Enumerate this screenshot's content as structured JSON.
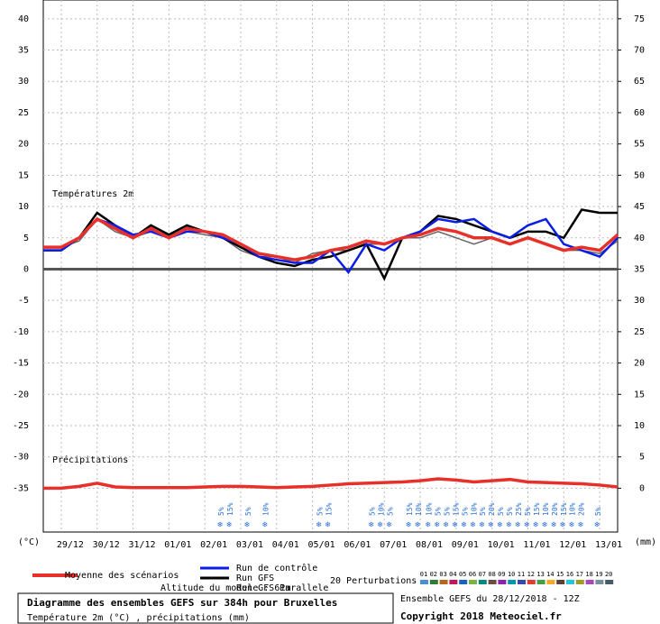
{
  "chart_data": {
    "type": "line",
    "temp_label": "Températures 2m",
    "precip_label": "Précipitations",
    "y_unit": "(°C)",
    "y2_unit": "(mm)",
    "x": [
      0,
      12,
      24,
      36,
      48,
      60,
      72,
      84,
      96,
      108,
      120,
      132,
      144,
      156,
      168,
      180,
      192,
      204,
      216,
      228,
      240,
      252,
      264,
      276,
      288,
      300,
      312,
      324,
      336,
      348,
      360,
      372,
      384
    ],
    "xlim": [
      0,
      384
    ],
    "xticks": [
      {
        "value": 12,
        "label": "29/12"
      },
      {
        "value": 36,
        "label": "30/12"
      },
      {
        "value": 60,
        "label": "31/12"
      },
      {
        "value": 84,
        "label": "01/01"
      },
      {
        "value": 108,
        "label": "02/01"
      },
      {
        "value": 132,
        "label": "03/01"
      },
      {
        "value": 156,
        "label": "04/01"
      },
      {
        "value": 180,
        "label": "05/01"
      },
      {
        "value": 204,
        "label": "06/01"
      },
      {
        "value": 228,
        "label": "07/01"
      },
      {
        "value": 252,
        "label": "08/01"
      },
      {
        "value": 276,
        "label": "09/01"
      },
      {
        "value": 300,
        "label": "10/01"
      },
      {
        "value": 324,
        "label": "11/01"
      },
      {
        "value": 348,
        "label": "12/01"
      },
      {
        "value": 372,
        "label": "13/01"
      }
    ],
    "ylim": [
      -42,
      43
    ],
    "yticks": [
      40,
      35,
      30,
      25,
      20,
      15,
      10,
      5,
      0,
      -5,
      -10,
      -15,
      -20,
      -25,
      -30,
      -35
    ],
    "y2lim": [
      -7,
      78
    ],
    "y2ticks": [
      75,
      70,
      65,
      60,
      55,
      50,
      45,
      40,
      35,
      30,
      25,
      20,
      15,
      10,
      5,
      0
    ],
    "grid": true,
    "series": [
      {
        "name": "Run GFS Parallele",
        "color": "#666666",
        "width": 1.5,
        "values": [
          3.5,
          3.5,
          4.5,
          8,
          6,
          5,
          6,
          5.5,
          6,
          5.5,
          5,
          3,
          2,
          2,
          1,
          2.5,
          3,
          3,
          4,
          4,
          5,
          5,
          6,
          5,
          4,
          5,
          4,
          5,
          4,
          3,
          3,
          2.5,
          4.5
        ]
      },
      {
        "name": "Run GFS",
        "color": "#000000",
        "width": 2.5,
        "values": [
          3,
          3,
          5,
          9,
          7,
          5,
          7,
          5.5,
          7,
          6,
          5,
          3.5,
          2,
          1,
          0.5,
          1.5,
          2,
          3,
          4,
          -1.5,
          5,
          6,
          8.5,
          8,
          7,
          6,
          5,
          6,
          6,
          5,
          9.5,
          9,
          9
        ]
      },
      {
        "name": "Run de contrôle",
        "color": "#0a1ee6",
        "width": 2.5,
        "values": [
          3,
          3,
          5,
          8,
          7,
          5.5,
          6,
          5,
          6,
          6,
          5,
          4,
          2,
          1.5,
          1,
          1,
          3,
          -0.5,
          4,
          3,
          5,
          6,
          8,
          7.5,
          8,
          6,
          5,
          7,
          8,
          4,
          3,
          2,
          5
        ]
      },
      {
        "name": "Moyenne des scénarios",
        "color": "#e8302a",
        "width": 3.5,
        "values": [
          3.5,
          3.5,
          5,
          8,
          6.5,
          5,
          6.5,
          5,
          6.5,
          6,
          5.5,
          4,
          2.5,
          2,
          1.5,
          2,
          3,
          3.5,
          4.5,
          4,
          5,
          5.5,
          6.5,
          6,
          5,
          5,
          4,
          5,
          4,
          3,
          3.5,
          3,
          5.5
        ]
      },
      {
        "color": "#e8302a",
        "width": 3.5,
        "axis": "y2",
        "values": [
          0,
          0,
          0.3,
          0.8,
          0.2,
          0.1,
          0.1,
          0.1,
          0.1,
          0.2,
          0.3,
          0.3,
          0.2,
          0.1,
          0.2,
          0.3,
          0.5,
          0.7,
          0.8,
          0.9,
          1.0,
          1.2,
          1.5,
          1.3,
          1.0,
          1.2,
          1.4,
          1.0,
          0.9,
          0.8,
          0.7,
          0.5,
          0.2
        ]
      }
    ],
    "snow": [
      {
        "x": 119,
        "label": "5%"
      },
      {
        "x": 125,
        "label": "15%"
      },
      {
        "x": 137,
        "label": "5%"
      },
      {
        "x": 149,
        "label": "10%"
      },
      {
        "x": 185,
        "label": "5%"
      },
      {
        "x": 191,
        "label": "15%"
      },
      {
        "x": 220,
        "label": "5%"
      },
      {
        "x": 226,
        "label": "10%"
      },
      {
        "x": 232,
        "label": "5%"
      },
      {
        "x": 245,
        "label": "15%"
      },
      {
        "x": 251,
        "label": "10%"
      },
      {
        "x": 258,
        "label": "10%"
      },
      {
        "x": 264,
        "label": "5%"
      },
      {
        "x": 270,
        "label": "5%"
      },
      {
        "x": 276,
        "label": "15%"
      },
      {
        "x": 282,
        "label": "5%"
      },
      {
        "x": 288,
        "label": "10%"
      },
      {
        "x": 294,
        "label": "5%"
      },
      {
        "x": 300,
        "label": "20%"
      },
      {
        "x": 306,
        "label": "5%"
      },
      {
        "x": 312,
        "label": "5%"
      },
      {
        "x": 318,
        "label": "25%"
      },
      {
        "x": 324,
        "label": "5%"
      },
      {
        "x": 330,
        "label": "15%"
      },
      {
        "x": 336,
        "label": "10%"
      },
      {
        "x": 342,
        "label": "20%"
      },
      {
        "x": 348,
        "label": "15%"
      },
      {
        "x": 354,
        "label": "10%"
      },
      {
        "x": 360,
        "label": "20%"
      },
      {
        "x": 371,
        "label": "5%"
      }
    ],
    "altitude": "Altitude du modele : 61m",
    "perturbations_label": "20 Perturbations",
    "perturbations": [
      {
        "label": "01",
        "color": "#4a8fd4"
      },
      {
        "label": "02",
        "color": "#2e7d32"
      },
      {
        "label": "03",
        "color": "#b5651d"
      },
      {
        "label": "04",
        "color": "#c2185b"
      },
      {
        "label": "05",
        "color": "#1565c0"
      },
      {
        "label": "06",
        "color": "#7cb342"
      },
      {
        "label": "07",
        "color": "#00897b"
      },
      {
        "label": "08",
        "color": "#6d4c41"
      },
      {
        "label": "09",
        "color": "#8e24aa"
      },
      {
        "label": "10",
        "color": "#0097a7"
      },
      {
        "label": "11",
        "color": "#3949ab"
      },
      {
        "label": "12",
        "color": "#e53935"
      },
      {
        "label": "13",
        "color": "#43a047"
      },
      {
        "label": "14",
        "color": "#f9a825"
      },
      {
        "label": "15",
        "color": "#5d4037"
      },
      {
        "label": "16",
        "color": "#26c6da"
      },
      {
        "label": "17",
        "color": "#9e9d24"
      },
      {
        "label": "18",
        "color": "#ab47bc"
      },
      {
        "label": "19",
        "color": "#78909c"
      },
      {
        "label": "20",
        "color": "#455a64"
      }
    ],
    "title": "Diagramme des ensembles GEFS sur 384h pour Bruxelles",
    "subtitle": "Température 2m (°C) , précipitations (mm)",
    "run_info": "Ensemble GEFS du 28/12/2018 - 12Z",
    "copyright": "Copyright 2018 Meteociel.fr"
  }
}
